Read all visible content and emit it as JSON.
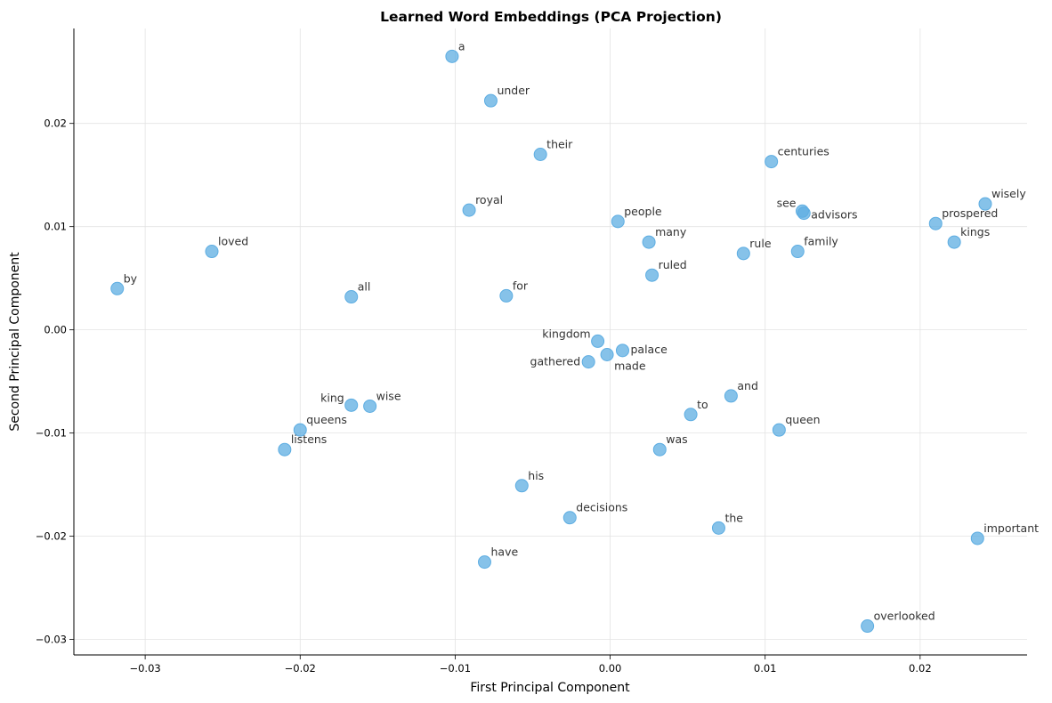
{
  "chart_data": {
    "type": "scatter",
    "title": "Learned Word Embeddings (PCA Projection)",
    "xlabel": "First Principal Component",
    "ylabel": "Second Principal Component",
    "xlim": [
      -0.0346,
      0.0269
    ],
    "ylim": [
      -0.0315,
      0.0292
    ],
    "xticks": [
      -0.03,
      -0.02,
      -0.01,
      0.0,
      0.01,
      0.02
    ],
    "xtick_labels": [
      "−0.03",
      "−0.02",
      "−0.01",
      "0.00",
      "0.01",
      "0.02"
    ],
    "yticks": [
      -0.03,
      -0.02,
      -0.01,
      0.0,
      0.01,
      0.02
    ],
    "ytick_labels": [
      "−0.03",
      "−0.02",
      "−0.01",
      "0.00",
      "0.01",
      "0.02"
    ],
    "grid": true,
    "point_color": "#5DADE2",
    "points": [
      {
        "label": "a",
        "x": -0.0102,
        "y": 0.0265
      },
      {
        "label": "under",
        "x": -0.0077,
        "y": 0.0222
      },
      {
        "label": "their",
        "x": -0.0045,
        "y": 0.017
      },
      {
        "label": "centuries",
        "x": 0.0104,
        "y": 0.0163
      },
      {
        "label": "royal",
        "x": -0.0091,
        "y": 0.0116
      },
      {
        "label": "people",
        "x": 0.0005,
        "y": 0.0105
      },
      {
        "label": "see",
        "x": 0.0124,
        "y": 0.0115
      },
      {
        "label": "advisors",
        "x": 0.0125,
        "y": 0.0113
      },
      {
        "label": "wisely",
        "x": 0.0242,
        "y": 0.0122
      },
      {
        "label": "prospered",
        "x": 0.021,
        "y": 0.0103
      },
      {
        "label": "kings",
        "x": 0.0222,
        "y": 0.0085
      },
      {
        "label": "loved",
        "x": -0.0257,
        "y": 0.0076
      },
      {
        "label": "many",
        "x": 0.0025,
        "y": 0.0085
      },
      {
        "label": "rule",
        "x": 0.0086,
        "y": 0.0074
      },
      {
        "label": "family",
        "x": 0.0121,
        "y": 0.0076
      },
      {
        "label": "by",
        "x": -0.0318,
        "y": 0.004
      },
      {
        "label": "all",
        "x": -0.0167,
        "y": 0.0032
      },
      {
        "label": "for",
        "x": -0.0067,
        "y": 0.0033
      },
      {
        "label": "ruled",
        "x": 0.0027,
        "y": 0.0053
      },
      {
        "label": "kingdom",
        "x": -0.0008,
        "y": -0.0011
      },
      {
        "label": "palace",
        "x": 0.0008,
        "y": -0.002
      },
      {
        "label": "made",
        "x": -0.0002,
        "y": -0.0024
      },
      {
        "label": "gathered",
        "x": -0.0014,
        "y": -0.0031
      },
      {
        "label": "and",
        "x": 0.0078,
        "y": -0.0064
      },
      {
        "label": "king",
        "x": -0.0167,
        "y": -0.0073
      },
      {
        "label": "wise",
        "x": -0.0155,
        "y": -0.0074
      },
      {
        "label": "to",
        "x": 0.0052,
        "y": -0.0082
      },
      {
        "label": "queens",
        "x": -0.02,
        "y": -0.0097
      },
      {
        "label": "queen",
        "x": 0.0109,
        "y": -0.0097
      },
      {
        "label": "listens",
        "x": -0.021,
        "y": -0.0116
      },
      {
        "label": "was",
        "x": 0.0032,
        "y": -0.0116
      },
      {
        "label": "his",
        "x": -0.0057,
        "y": -0.0151
      },
      {
        "label": "decisions",
        "x": -0.0026,
        "y": -0.0182
      },
      {
        "label": "the",
        "x": 0.007,
        "y": -0.0192
      },
      {
        "label": "important",
        "x": 0.0237,
        "y": -0.0202
      },
      {
        "label": "have",
        "x": -0.0081,
        "y": -0.0225
      },
      {
        "label": "overlooked",
        "x": 0.0166,
        "y": -0.0287
      }
    ]
  }
}
